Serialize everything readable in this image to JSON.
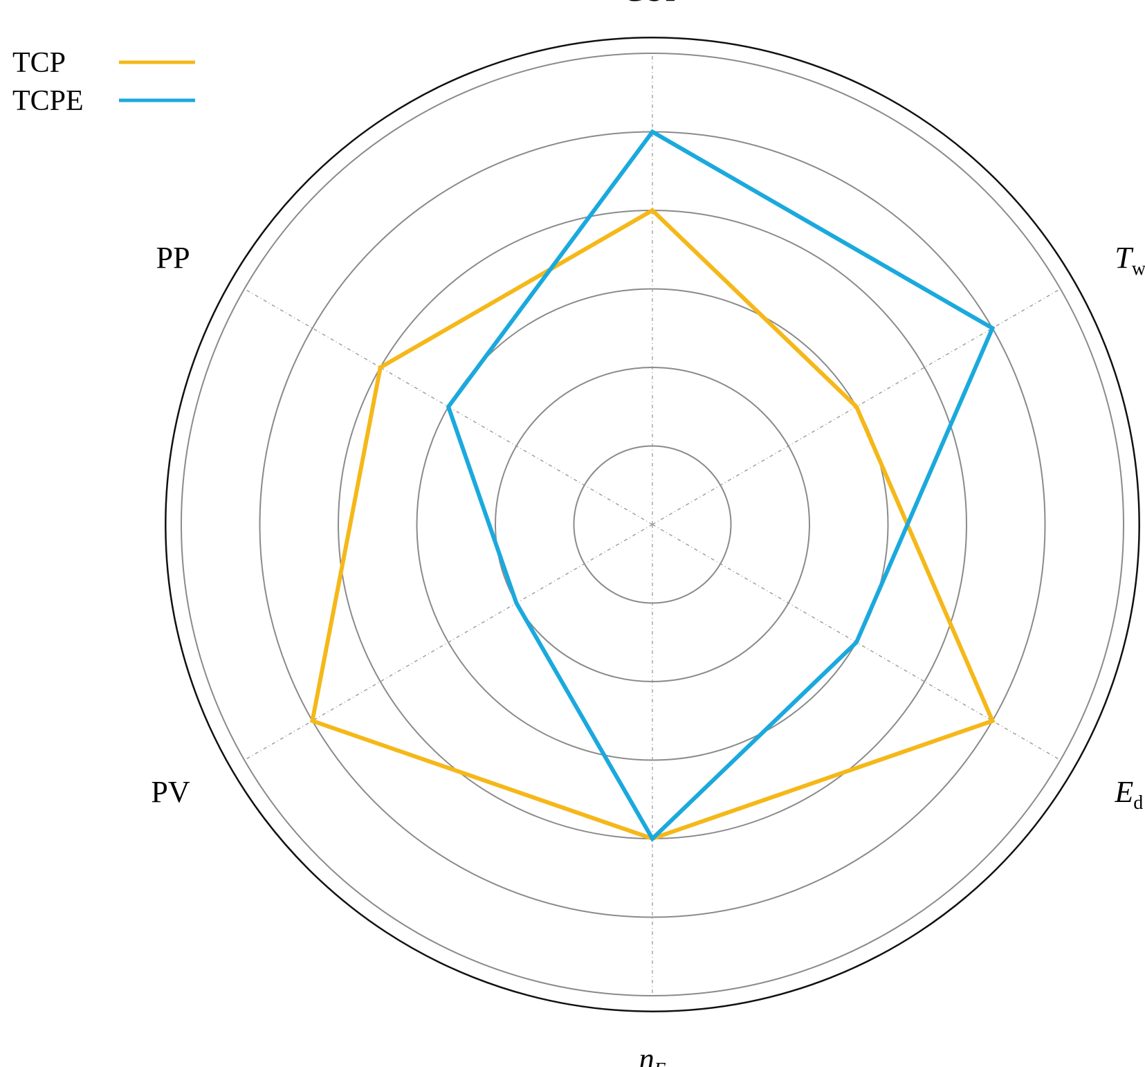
{
  "chart_data": {
    "type": "radar",
    "title": "",
    "axes": [
      {
        "key": "COP",
        "label": "COP",
        "italic": "",
        "sub": ""
      },
      {
        "key": "Tw",
        "label": "",
        "italic": "T",
        "sub": "w"
      },
      {
        "key": "Ed",
        "label": "",
        "italic": "E",
        "sub": "d"
      },
      {
        "key": "etaE",
        "label": "",
        "italic": "η",
        "sub": "E"
      },
      {
        "key": "PV",
        "label": "PV",
        "italic": "",
        "sub": ""
      },
      {
        "key": "PP",
        "label": "PP",
        "italic": "",
        "sub": ""
      }
    ],
    "rings": [
      1,
      2,
      3,
      4,
      5,
      6
    ],
    "outer_ring": 6.2,
    "series": [
      {
        "name": "TCP",
        "color": "#F5B819",
        "values": [
          4,
          3,
          5,
          4,
          5,
          4
        ]
      },
      {
        "name": "TCPE",
        "color": "#1BA9DD",
        "values": [
          5,
          5,
          3,
          4,
          2,
          3
        ]
      }
    ],
    "legend_position": "top-left",
    "grid": true
  }
}
